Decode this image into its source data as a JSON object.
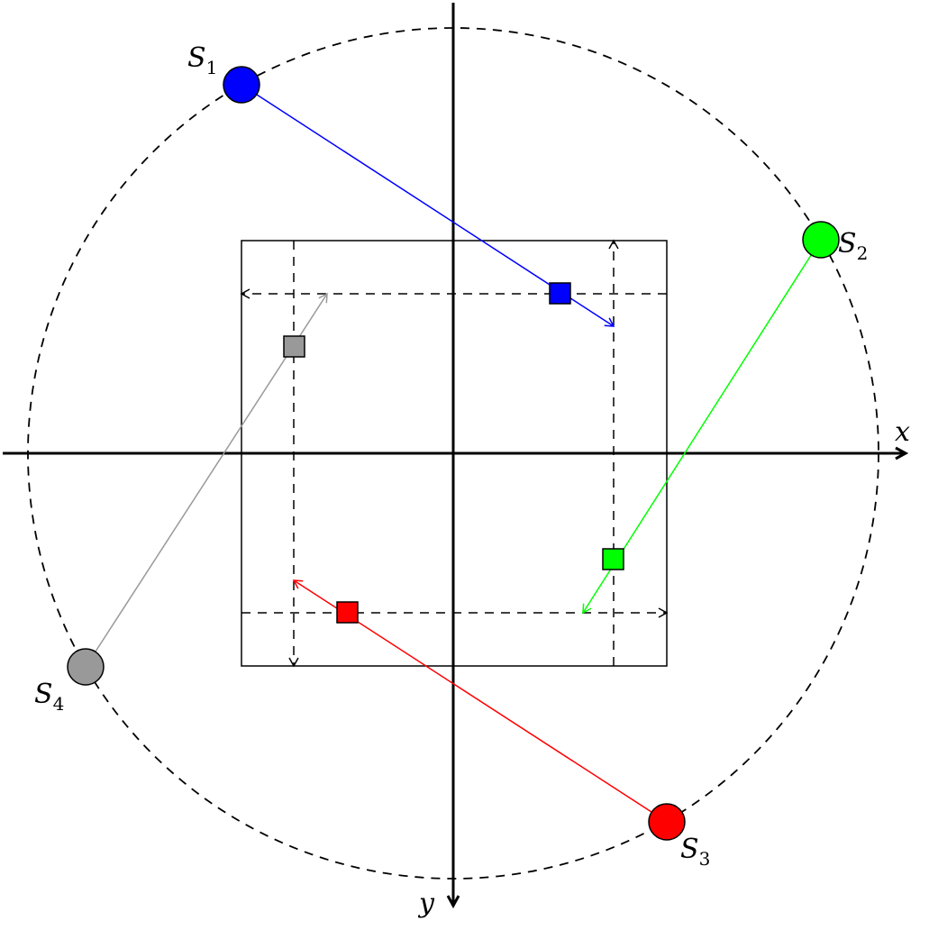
{
  "axes": {
    "x_label": "x",
    "y_label": "y"
  },
  "sources": [
    {
      "id": "S1",
      "letter": "S",
      "index": "1",
      "color": "#0000ff"
    },
    {
      "id": "S2",
      "letter": "S",
      "index": "2",
      "color": "#00ff00"
    },
    {
      "id": "S3",
      "letter": "S",
      "index": "3",
      "color": "#ff0000"
    },
    {
      "id": "S4",
      "letter": "S",
      "index": "4",
      "color": "#999999"
    }
  ]
}
